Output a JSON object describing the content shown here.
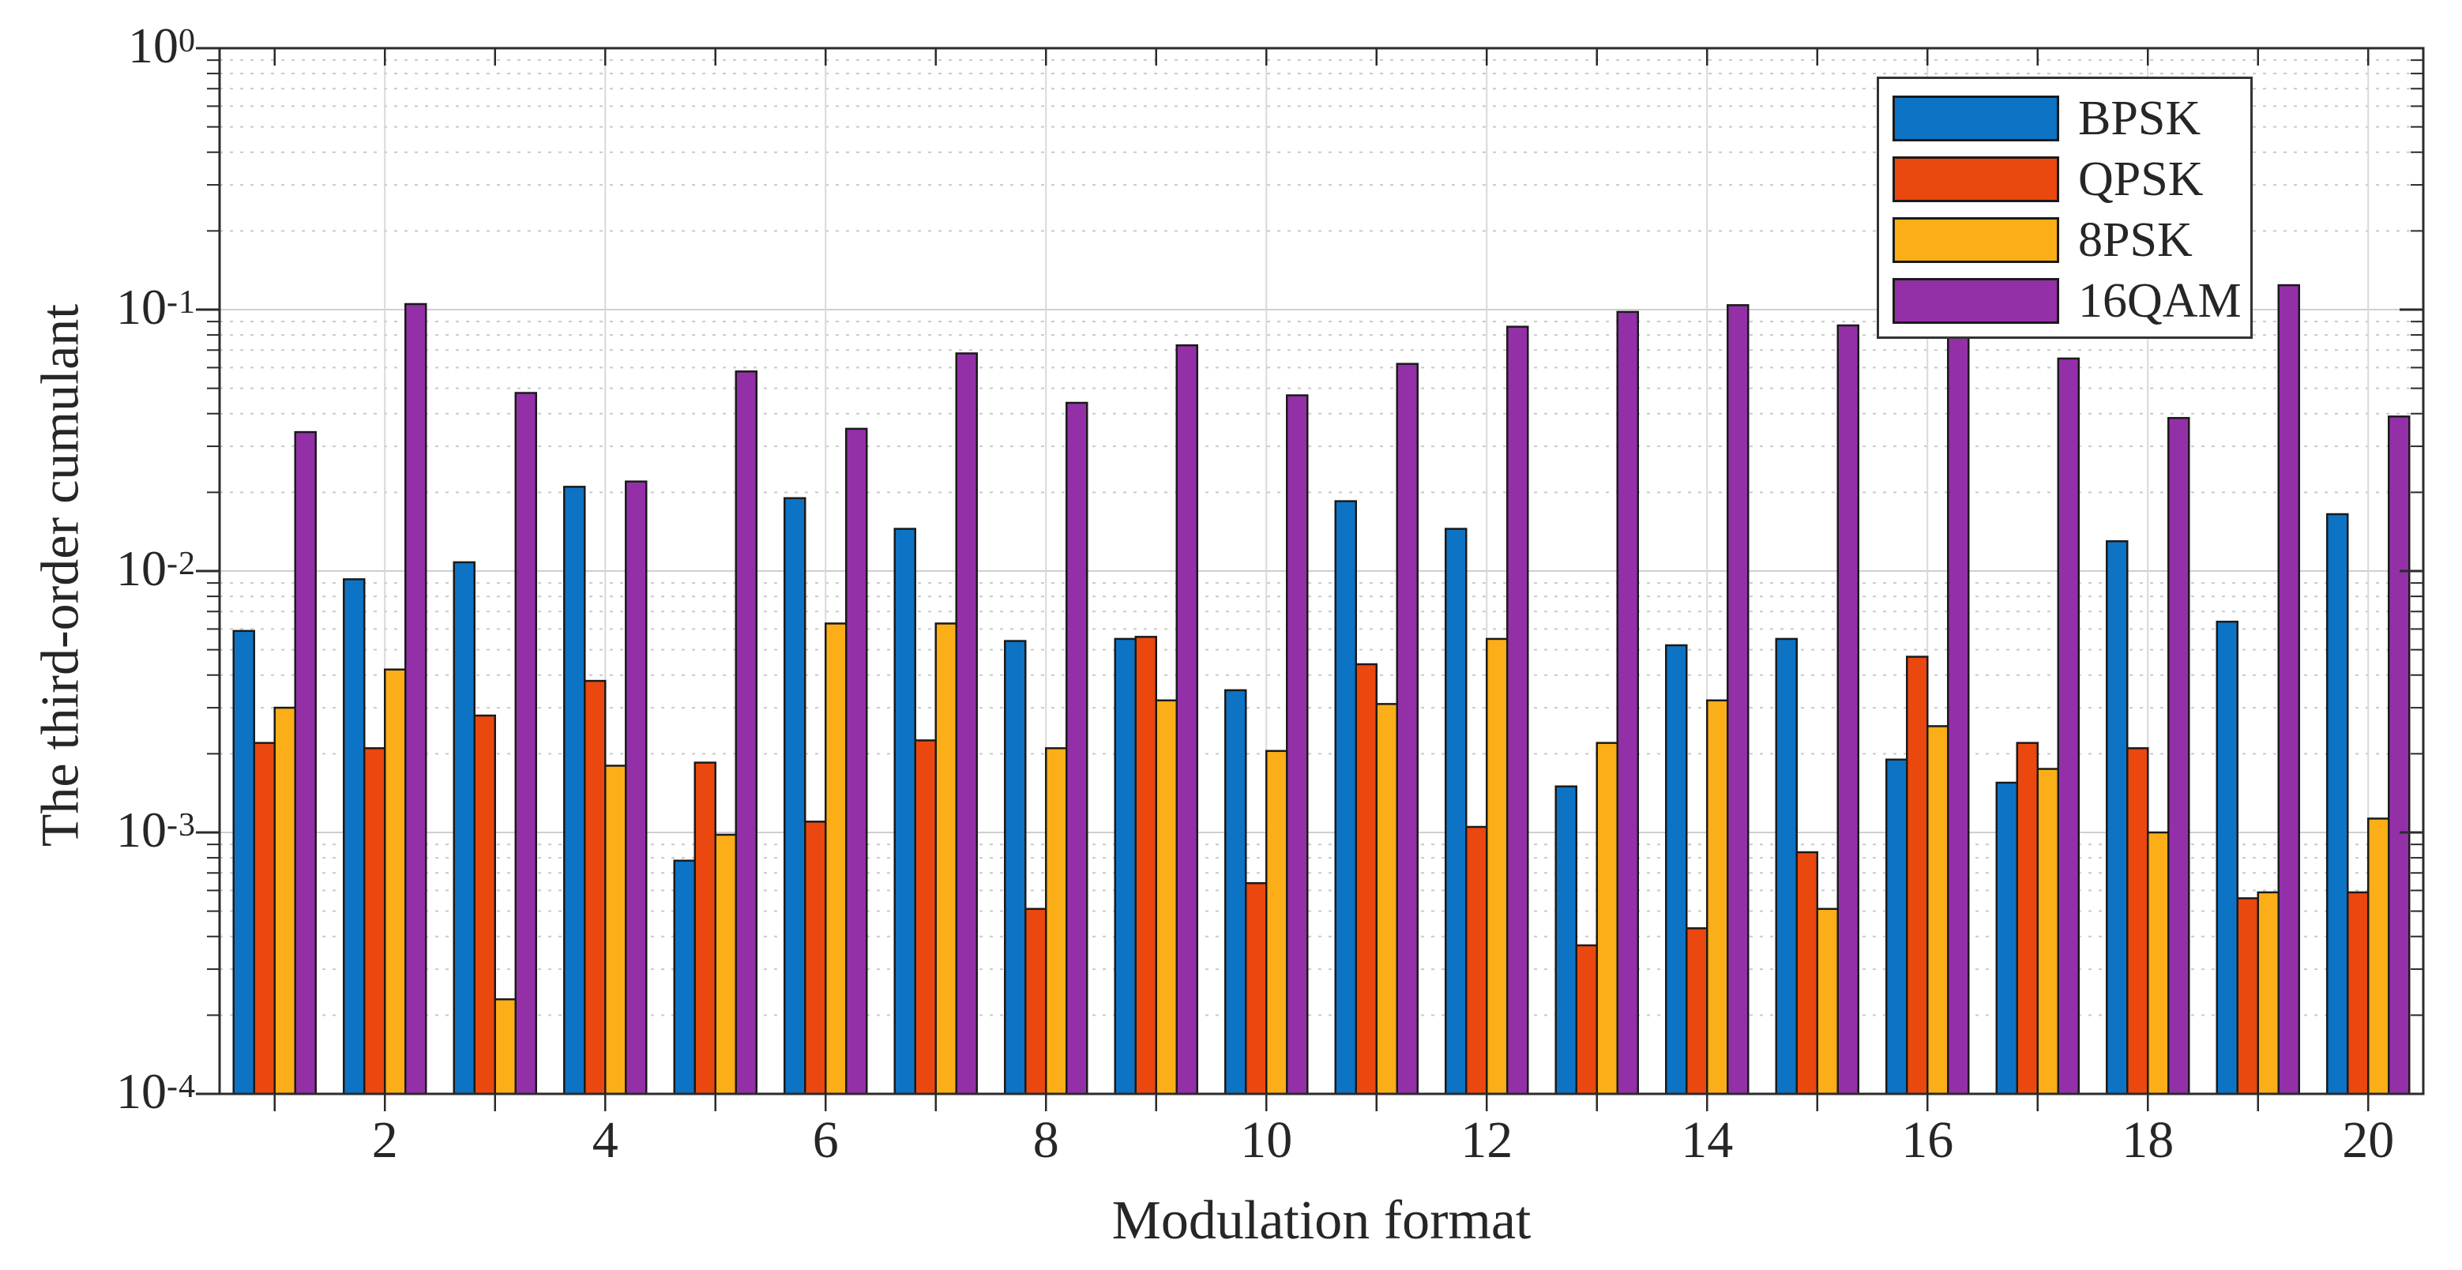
{
  "chart_data": {
    "type": "bar",
    "title": "",
    "xlabel": "Modulation format",
    "ylabel": "The third-order cumulant",
    "x": [
      1,
      2,
      3,
      4,
      5,
      6,
      7,
      8,
      9,
      10,
      11,
      12,
      13,
      14,
      15,
      16,
      17,
      18,
      19,
      20
    ],
    "x_tick_labels": [
      "2",
      "4",
      "6",
      "8",
      "10",
      "12",
      "14",
      "16",
      "18",
      "20"
    ],
    "x_tick_positions": [
      2,
      4,
      6,
      8,
      10,
      12,
      14,
      16,
      18,
      20
    ],
    "y_scale": "log",
    "ylim": [
      0.0001,
      1
    ],
    "y_tick_exponents": [
      0,
      -1,
      -2,
      -3,
      -4
    ],
    "grid": true,
    "legend_position": "top-right",
    "bar_edge_color": "#1a1a1a",
    "frame_color": "#2b2b2b",
    "major_grid_color": "#cfcfcf",
    "minor_grid_color": "#c9c9c9",
    "series": [
      {
        "name": "BPSK",
        "color": "#0d73c4",
        "values": [
          0.0059,
          0.0093,
          0.0108,
          0.021,
          0.00078,
          0.019,
          0.0145,
          0.0054,
          0.0055,
          0.0035,
          0.0185,
          0.0145,
          0.0015,
          0.0052,
          0.0055,
          0.0019,
          0.00155,
          0.013,
          0.0064,
          0.0165
        ]
      },
      {
        "name": "QPSK",
        "color": "#ea480f",
        "values": [
          0.0022,
          0.0021,
          0.0028,
          0.0038,
          0.00185,
          0.0011,
          0.00225,
          0.00051,
          0.0056,
          0.00064,
          0.0044,
          0.00105,
          0.00037,
          0.00043,
          0.00084,
          0.0047,
          0.0022,
          0.0021,
          0.00056,
          0.00059
        ]
      },
      {
        "name": "8PSK",
        "color": "#fbae17",
        "values": [
          0.003,
          0.0042,
          0.00023,
          0.0018,
          0.00098,
          0.0063,
          0.0063,
          0.0021,
          0.0032,
          0.00205,
          0.0031,
          0.0055,
          0.0022,
          0.0032,
          0.00051,
          0.00255,
          0.00175,
          0.001,
          0.00059,
          0.00113
        ]
      },
      {
        "name": "16QAM",
        "color": "#9330a8",
        "values": [
          0.034,
          0.105,
          0.048,
          0.022,
          0.058,
          0.035,
          0.068,
          0.044,
          0.073,
          0.047,
          0.062,
          0.086,
          0.098,
          0.104,
          0.087,
          0.079,
          0.065,
          0.0385,
          0.124,
          0.039
        ]
      }
    ]
  }
}
